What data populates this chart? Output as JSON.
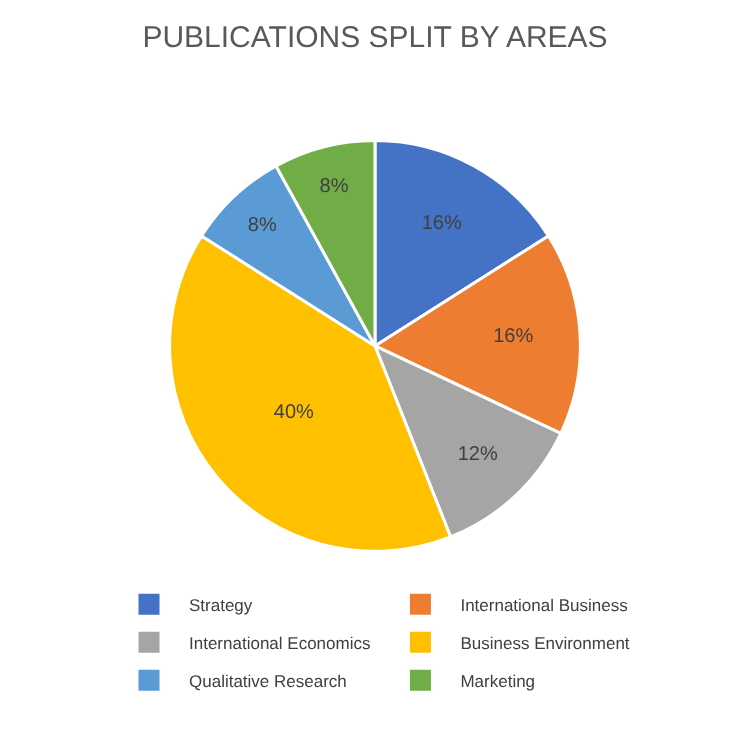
{
  "chart_data": {
    "type": "pie",
    "title": "PUBLICATIONS SPLIT BY AREAS",
    "categories": [
      "Strategy",
      "International Business",
      "International Economics",
      "Business Environment",
      "Qualitative Research",
      "Marketing"
    ],
    "values": [
      16,
      16,
      12,
      40,
      8,
      8
    ],
    "value_labels": [
      "16%",
      "16%",
      "12%",
      "40%",
      "8%",
      "8%"
    ],
    "colors": [
      "#4472c4",
      "#ed7d31",
      "#a5a5a5",
      "#ffc000",
      "#5b9bd5",
      "#70ad47"
    ],
    "legend": "bottom"
  }
}
